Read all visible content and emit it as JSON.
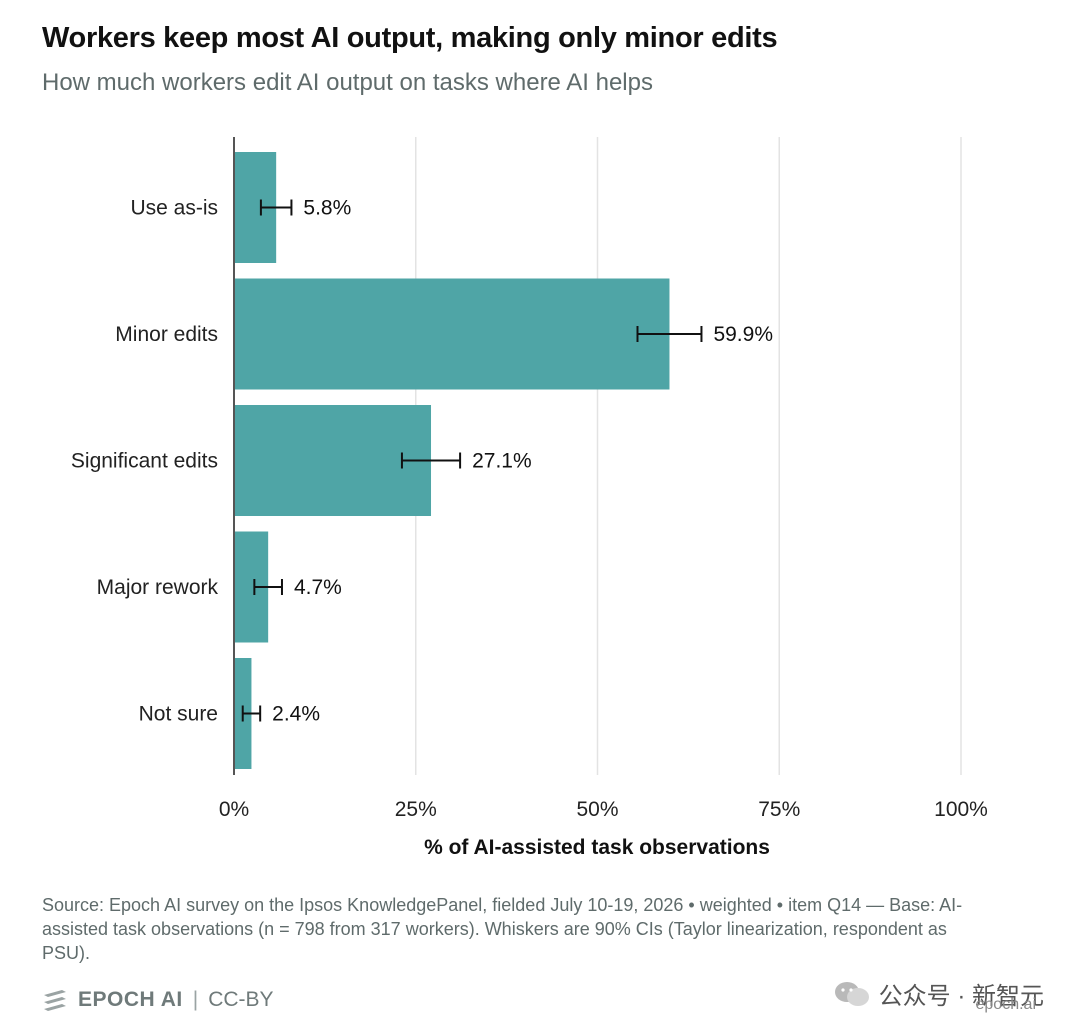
{
  "header": {
    "title": "Workers keep most AI output, making only minor edits",
    "subtitle": "How much workers edit AI output on tasks where AI helps"
  },
  "chart_data": {
    "type": "bar",
    "orientation": "horizontal",
    "categories": [
      "Use as-is",
      "Minor edits",
      "Significant edits",
      "Major rework",
      "Not sure"
    ],
    "values": [
      5.8,
      59.9,
      27.1,
      4.7,
      2.4
    ],
    "value_labels": [
      "5.8%",
      "59.9%",
      "27.1%",
      "4.7%",
      "2.4%"
    ],
    "ci_low": [
      3.7,
      55.5,
      23.1,
      2.8,
      1.2
    ],
    "ci_high": [
      7.9,
      64.3,
      31.1,
      6.6,
      3.6
    ],
    "xlabel": "% of AI-assisted task observations",
    "ylabel": "",
    "xlim": [
      0,
      100
    ],
    "xticks": [
      0,
      25,
      50,
      75,
      100
    ],
    "xtick_labels": [
      "0%",
      "25%",
      "50%",
      "75%",
      "100%"
    ],
    "grid": true,
    "bar_color": "#4fa5a6"
  },
  "source": {
    "text": "Source: Epoch AI survey on the Ipsos KnowledgePanel, fielded July 10-19, 2026 • weighted • item Q14 — Base: AI-assisted task observations (n = 798 from 317 workers). Whiskers are 90% CIs (Taylor linearization, respondent as PSU)."
  },
  "footer": {
    "brand": "EPOCH AI",
    "separator": "|",
    "license": "CC-BY"
  },
  "watermark": {
    "text": "公众号 · 新智元",
    "url": "epoch.ai"
  }
}
